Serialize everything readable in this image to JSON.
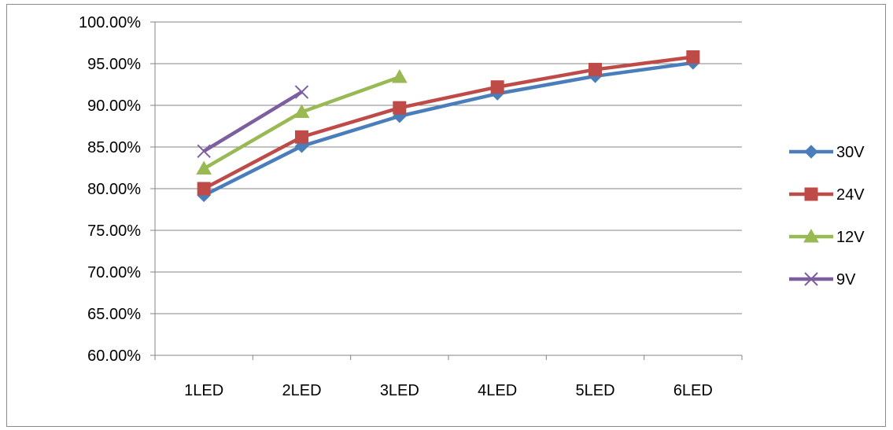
{
  "chart_data": {
    "type": "line",
    "title": "",
    "xlabel": "",
    "ylabel": "",
    "categories": [
      "1LED",
      "2LED",
      "3LED",
      "4LED",
      "5LED",
      "6LED"
    ],
    "ylim": [
      0.6,
      1.0
    ],
    "yticks": [
      "60.00%",
      "65.00%",
      "70.00%",
      "75.00%",
      "80.00%",
      "85.00%",
      "90.00%",
      "95.00%",
      "100.00%"
    ],
    "grid": true,
    "legend_position": "right",
    "series": [
      {
        "name": "30V",
        "color": "#4a7ebb",
        "marker": "diamond",
        "values": [
          0.792,
          0.851,
          0.887,
          0.914,
          0.935,
          0.951
        ]
      },
      {
        "name": "24V",
        "color": "#be4b48",
        "marker": "square",
        "values": [
          0.8,
          0.862,
          0.897,
          0.922,
          0.943,
          0.958
        ]
      },
      {
        "name": "12V",
        "color": "#98b954",
        "marker": "triangle",
        "values": [
          0.824,
          0.892,
          0.934,
          null,
          null,
          null
        ]
      },
      {
        "name": "9V",
        "color": "#7d5fa0",
        "marker": "x",
        "values": [
          0.845,
          0.916,
          null,
          null,
          null,
          null
        ]
      }
    ]
  }
}
